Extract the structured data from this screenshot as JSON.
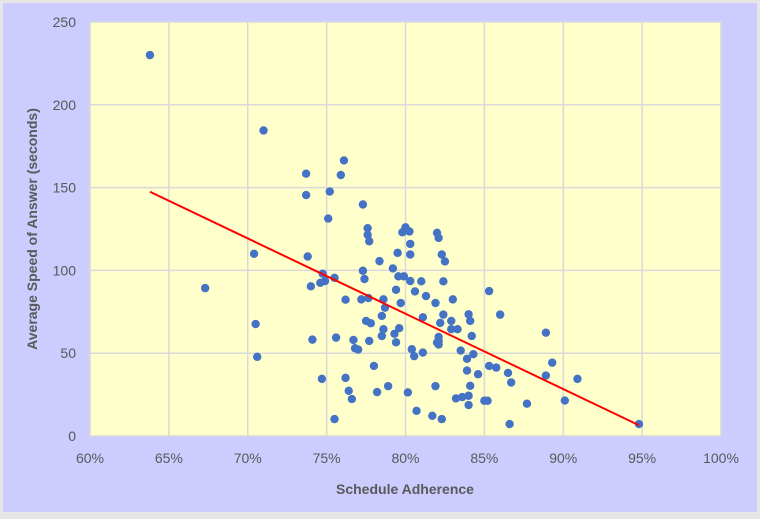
{
  "chart_data": {
    "type": "scatter",
    "title": "",
    "xlabel": "Schedule Adherence",
    "ylabel": "Average Speed of Answer (seconds)",
    "xlim": [
      60,
      100
    ],
    "ylim": [
      0,
      250
    ],
    "x_ticks": [
      "60%",
      "65%",
      "70%",
      "75%",
      "80%",
      "85%",
      "90%",
      "95%",
      "100%"
    ],
    "x_tick_values": [
      60,
      65,
      70,
      75,
      80,
      85,
      90,
      95,
      100
    ],
    "y_ticks": [
      "0",
      "50",
      "100",
      "150",
      "200",
      "250"
    ],
    "y_tick_values": [
      0,
      50,
      100,
      150,
      200,
      250
    ],
    "grid": true,
    "legend": "none",
    "colors": {
      "background": "#ccccff",
      "plot_area": "#ffffcc",
      "points": "#4472c4",
      "trendline": "#ff0000",
      "grid": "#d9d9d9"
    },
    "trendline": {
      "type": "linear",
      "x": [
        63.8,
        94.8
      ],
      "y": [
        147.5,
        6.5
      ]
    },
    "points": [
      [
        63.8,
        230
      ],
      [
        71.0,
        184.5
      ],
      [
        67.3,
        89.3
      ],
      [
        70.4,
        110
      ],
      [
        70.5,
        67.6
      ],
      [
        70.6,
        47.8
      ],
      [
        76.1,
        166.4
      ],
      [
        73.7,
        158.4
      ],
      [
        75.9,
        157.6
      ],
      [
        73.7,
        145.5
      ],
      [
        75.2,
        147.6
      ],
      [
        77.3,
        139.8
      ],
      [
        75.1,
        131.3
      ],
      [
        77.6,
        125.5
      ],
      [
        77.6,
        121.5
      ],
      [
        77.7,
        117.6
      ],
      [
        80.0,
        126
      ],
      [
        79.8,
        123
      ],
      [
        80.25,
        123.5
      ],
      [
        80.3,
        116
      ],
      [
        80.3,
        109.6
      ],
      [
        79.5,
        110.6
      ],
      [
        82.0,
        122.7
      ],
      [
        82.1,
        119.6
      ],
      [
        82.3,
        109.6
      ],
      [
        82.5,
        105.4
      ],
      [
        73.8,
        108.4
      ],
      [
        78.35,
        105.6
      ],
      [
        79.2,
        101.2
      ],
      [
        77.3,
        99.8
      ],
      [
        77.4,
        94.8
      ],
      [
        74.75,
        98
      ],
      [
        74.6,
        92.5
      ],
      [
        74.9,
        93.6
      ],
      [
        74.0,
        90.4
      ],
      [
        75.5,
        95.5
      ],
      [
        79.55,
        96.4
      ],
      [
        79.9,
        96.4
      ],
      [
        80.3,
        93.6
      ],
      [
        81.0,
        93.4
      ],
      [
        82.4,
        93.4
      ],
      [
        79.4,
        88.3
      ],
      [
        80.6,
        87.3
      ],
      [
        81.3,
        84.5
      ],
      [
        81.9,
        80.3
      ],
      [
        83.0,
        82.5
      ],
      [
        76.2,
        82.3
      ],
      [
        77.2,
        82.5
      ],
      [
        77.65,
        83.3
      ],
      [
        78.6,
        82.5
      ],
      [
        78.7,
        77.5
      ],
      [
        79.7,
        80.3
      ],
      [
        78.5,
        72.5
      ],
      [
        77.5,
        69.5
      ],
      [
        77.8,
        68.1
      ],
      [
        81.1,
        71.7
      ],
      [
        82.4,
        73.3
      ],
      [
        82.2,
        68.3
      ],
      [
        82.9,
        69.5
      ],
      [
        84.0,
        73.5
      ],
      [
        84.1,
        69.5
      ],
      [
        78.6,
        64.5
      ],
      [
        79.6,
        65.1
      ],
      [
        78.5,
        60.4
      ],
      [
        79.3,
        61.7
      ],
      [
        79.4,
        56.6
      ],
      [
        77.7,
        57.4
      ],
      [
        76.7,
        58
      ],
      [
        75.6,
        59.4
      ],
      [
        74.1,
        58.2
      ],
      [
        82.1,
        59.8
      ],
      [
        82.1,
        57.4
      ],
      [
        82.0,
        56.4
      ],
      [
        82.1,
        55.2
      ],
      [
        82.9,
        64.5
      ],
      [
        83.3,
        64.5
      ],
      [
        84.2,
        60.4
      ],
      [
        76.8,
        53
      ],
      [
        77.0,
        52.2
      ],
      [
        80.4,
        52.4
      ],
      [
        80.55,
        48.2
      ],
      [
        81.1,
        50.4
      ],
      [
        83.5,
        51.6
      ],
      [
        83.9,
        46.6
      ],
      [
        84.3,
        49.4
      ],
      [
        83.9,
        39.5
      ],
      [
        84.6,
        37.3
      ],
      [
        78.0,
        42.3
      ],
      [
        74.7,
        34.5
      ],
      [
        76.2,
        35.1
      ],
      [
        76.4,
        27.3
      ],
      [
        76.6,
        22.3
      ],
      [
        78.2,
        26.5
      ],
      [
        78.9,
        30.1
      ],
      [
        80.15,
        26.3
      ],
      [
        81.9,
        30.1
      ],
      [
        80.7,
        15.2
      ],
      [
        81.7,
        12.2
      ],
      [
        82.3,
        10.2
      ],
      [
        75.5,
        10.2
      ],
      [
        83.2,
        22.7
      ],
      [
        83.6,
        23.5
      ],
      [
        84.0,
        24.3
      ],
      [
        84.0,
        18.7
      ],
      [
        84.1,
        30.3
      ],
      [
        85.3,
        87.5
      ],
      [
        86.0,
        73.3
      ],
      [
        88.9,
        62.4
      ],
      [
        85.3,
        42.3
      ],
      [
        85.75,
        41.3
      ],
      [
        86.5,
        38.1
      ],
      [
        86.7,
        32.3
      ],
      [
        88.9,
        36.5
      ],
      [
        89.3,
        44.3
      ],
      [
        90.9,
        34.5
      ],
      [
        85.0,
        21.3
      ],
      [
        85.2,
        21.3
      ],
      [
        87.7,
        19.5
      ],
      [
        90.1,
        21.4
      ],
      [
        86.6,
        7.2
      ],
      [
        94.8,
        7.2
      ]
    ]
  }
}
